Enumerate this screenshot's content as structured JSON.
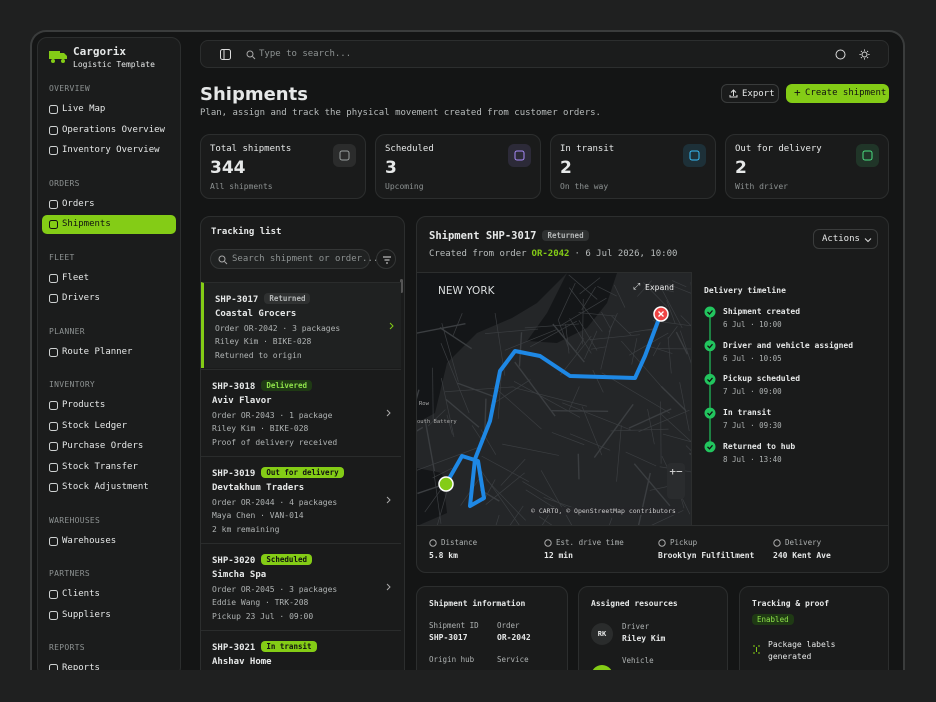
{
  "sidebar": {
    "brand": {
      "name": "Cargorix",
      "tagline": "Logistic Template"
    },
    "sections": [
      {
        "title": "OVERVIEW",
        "items": [
          {
            "label": "Live Map"
          },
          {
            "label": "Operations Overview"
          },
          {
            "label": "Inventory Overview"
          }
        ]
      },
      {
        "title": "ORDERS",
        "items": [
          {
            "label": "Orders"
          },
          {
            "label": "Shipments",
            "active": true
          }
        ]
      },
      {
        "title": "FLEET",
        "items": [
          {
            "label": "Fleet"
          },
          {
            "label": "Drivers"
          }
        ]
      },
      {
        "title": "PLANNER",
        "items": [
          {
            "label": "Route Planner"
          }
        ]
      },
      {
        "title": "INVENTORY",
        "items": [
          {
            "label": "Products"
          },
          {
            "label": "Stock Ledger"
          },
          {
            "label": "Purchase Orders"
          },
          {
            "label": "Stock Transfer"
          },
          {
            "label": "Stock Adjustment"
          }
        ]
      },
      {
        "title": "WAREHOUSES",
        "items": [
          {
            "label": "Warehouses"
          }
        ]
      },
      {
        "title": "PARTNERS",
        "items": [
          {
            "label": "Clients"
          },
          {
            "label": "Suppliers"
          }
        ]
      },
      {
        "title": "REPORTS",
        "items": [
          {
            "label": "Reports"
          }
        ]
      }
    ]
  },
  "topbar": {
    "search": "Type to search..."
  },
  "header": {
    "title": "Shipments",
    "subtitle": "Plan, assign and track the physical movement created from customer orders.",
    "export": "Export",
    "create": "Create shipment"
  },
  "stats": [
    {
      "label": "Total shipments",
      "value": "344",
      "note": "All shipments",
      "icon_color": "#9aa0a0"
    },
    {
      "label": "Scheduled",
      "value": "3",
      "note": "Upcoming",
      "icon_color": "#a78bfa"
    },
    {
      "label": "In transit",
      "value": "2",
      "note": "On the way",
      "icon_color": "#38bdf8"
    },
    {
      "label": "Out for delivery",
      "value": "2",
      "note": "With driver",
      "icon_color": "#4ade80"
    }
  ],
  "tracking": {
    "title": "Tracking list",
    "search": "Search shipment or order...",
    "items": [
      {
        "id": "SHP-3017",
        "status": "Returned",
        "badge_color": "#2f3131",
        "client": "Coastal Grocers",
        "order": "Order OR-2042 · 3 packages",
        "driver": "Riley Kim · BIKE-028",
        "note": "Returned to origin",
        "selected": true
      },
      {
        "id": "SHP-3018",
        "status": "Delivered",
        "badge_color": "#1f3a14",
        "client": "Aviv Flavor",
        "order": "Order OR-2043 · 1 package",
        "driver": "Riley Kim · BIKE-028",
        "note": "Proof of delivery received"
      },
      {
        "id": "SHP-3019",
        "status": "Out for delivery",
        "badge_color": "#84cc16",
        "client": "Devtakhum Traders",
        "order": "Order OR-2044 · 4 packages",
        "driver": "Maya Chen · VAN-014",
        "note": "2 km remaining"
      },
      {
        "id": "SHP-3020",
        "status": "Scheduled",
        "badge_color": "#84cc16",
        "client": "Simcha Spa",
        "order": "Order OR-2045 · 3 packages",
        "driver": "Eddie Wang · TRK-208",
        "note": "Pickup 23 Jul · 09:00"
      },
      {
        "id": "SHP-3021",
        "status": "In transit",
        "badge_color": "#84cc16",
        "client": "Ahshav Home"
      }
    ]
  },
  "detail": {
    "title": "Shipment SHP-3017",
    "status": "Returned",
    "created": "Created from order",
    "order": "OR-2042",
    "date": "· 6 Jul 2026, 10:00",
    "actions": "Actions",
    "map": {
      "city": "NEW YORK",
      "expand": "Expand",
      "label_a": "Row",
      "label_b": "outh Battery",
      "attribution": "© CARTO, © OpenStreetMap contributors"
    },
    "timeline": {
      "title": "Delivery timeline",
      "events": [
        {
          "label": "Shipment created",
          "time": "6 Jul · 10:00"
        },
        {
          "label": "Driver and vehicle assigned",
          "time": "6 Jul · 10:05"
        },
        {
          "label": "Pickup scheduled",
          "time": "7 Jul · 09:00"
        },
        {
          "label": "In transit",
          "time": "7 Jul · 09:30"
        },
        {
          "label": "Returned to hub",
          "time": "8 Jul · 13:40"
        }
      ]
    },
    "metrics": [
      {
        "label": "Distance",
        "value": "5.8 km"
      },
      {
        "label": "Est. drive time",
        "value": "12 min"
      },
      {
        "label": "Pickup",
        "value": "Brooklyn Fulfillment"
      },
      {
        "label": "Delivery",
        "value": "240 Kent Ave"
      }
    ]
  },
  "info": {
    "title": "Shipment information",
    "fields": [
      {
        "label": "Shipment ID",
        "value": "SHP-3017"
      },
      {
        "label": "Order",
        "value": "OR-2042"
      },
      {
        "label": "Origin hub"
      },
      {
        "label": "Service"
      }
    ]
  },
  "resources": {
    "title": "Assigned resources",
    "driver_label": "Driver",
    "driver": "Riley Kim",
    "initials": "RK",
    "vehicle_label": "Vehicle"
  },
  "proof": {
    "title": "Tracking & proof",
    "status": "Enabled",
    "item": "Package labels generated"
  }
}
